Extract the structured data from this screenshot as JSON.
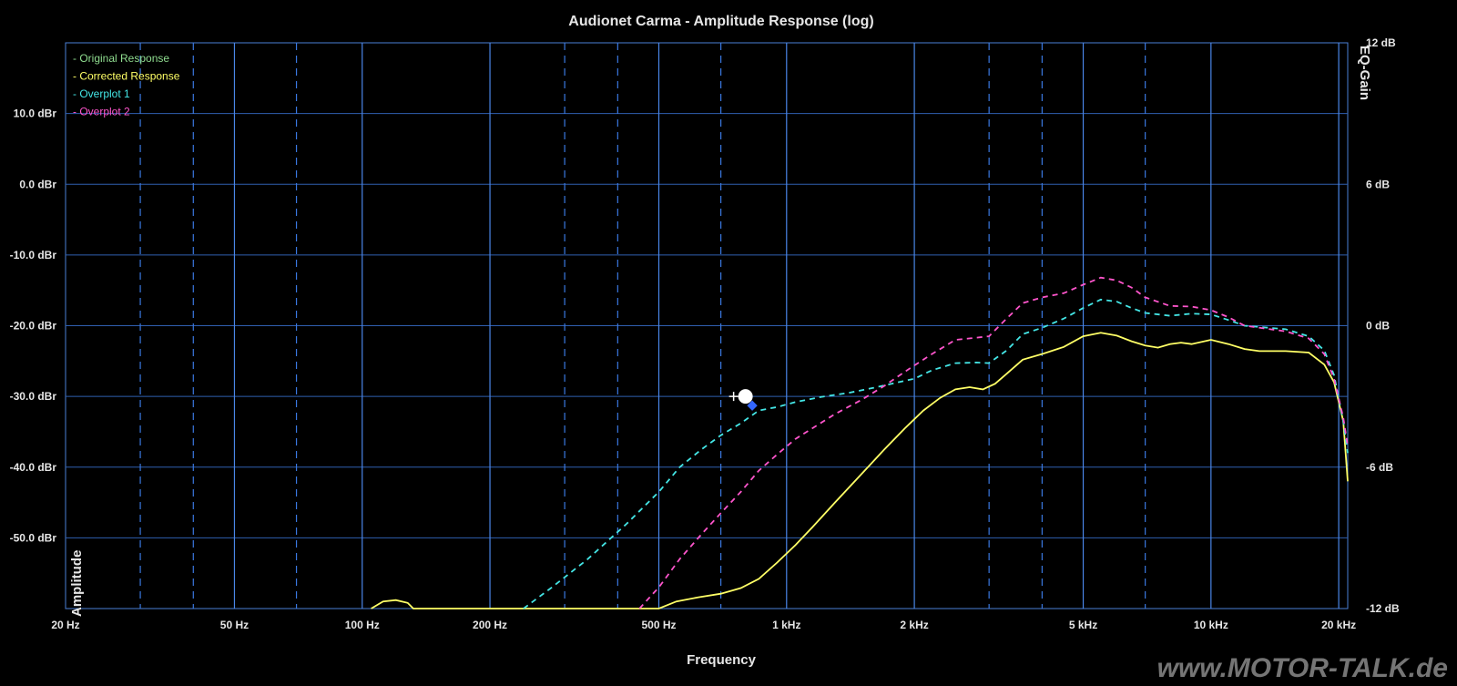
{
  "chart_data": {
    "type": "line",
    "title": "Audionet Carma - Amplitude Response (log)",
    "xlabel": "Frequency",
    "ylabel": "Amplitude",
    "y2label": "EQ-Gain",
    "x_scale": "log",
    "xlim": [
      20,
      21000
    ],
    "ylim": [
      -60,
      20
    ],
    "y2lim": [
      -12,
      12
    ],
    "grid": true,
    "legend_position": "top-left",
    "x_ticks": [
      {
        "value": 20,
        "label": "20 Hz"
      },
      {
        "value": 50,
        "label": "50 Hz"
      },
      {
        "value": 100,
        "label": "100 Hz"
      },
      {
        "value": 200,
        "label": "200 Hz"
      },
      {
        "value": 500,
        "label": "500 Hz"
      },
      {
        "value": 1000,
        "label": "1 kHz"
      },
      {
        "value": 2000,
        "label": "2 kHz"
      },
      {
        "value": 5000,
        "label": "5 kHz"
      },
      {
        "value": 10000,
        "label": "10 kHz"
      },
      {
        "value": 20000,
        "label": "20 kHz"
      }
    ],
    "x_minor_grid": [
      30,
      40,
      70,
      300,
      400,
      700,
      3000,
      4000,
      7000
    ],
    "y_ticks": [
      {
        "value": 10,
        "label": "10.0 dBr"
      },
      {
        "value": 0,
        "label": "0.0 dBr"
      },
      {
        "value": -10,
        "label": "-10.0 dBr"
      },
      {
        "value": -20,
        "label": "-20.0 dBr"
      },
      {
        "value": -30,
        "label": "-30.0 dBr"
      },
      {
        "value": -40,
        "label": "-40.0 dBr"
      },
      {
        "value": -50,
        "label": "-50.0 dBr"
      }
    ],
    "y_grid_values": [
      10,
      0,
      -10,
      -20,
      -30,
      -40,
      -50
    ],
    "y2_ticks": [
      {
        "value": 12,
        "label": "12 dB"
      },
      {
        "value": 6,
        "label": "6 dB"
      },
      {
        "value": 0,
        "label": "0 dB"
      },
      {
        "value": -6,
        "label": "-6 dB"
      },
      {
        "value": -12,
        "label": "-12 dB"
      }
    ],
    "series": [
      {
        "name": "Original Response",
        "color": "#8fdc8f",
        "dashed": false,
        "points": []
      },
      {
        "name": "Corrected Response",
        "color": "#ffff66",
        "dashed": false,
        "points": [
          [
            105,
            -60
          ],
          [
            112,
            -59
          ],
          [
            120,
            -58.8
          ],
          [
            128,
            -59.2
          ],
          [
            132,
            -60
          ],
          [
            500,
            -60
          ],
          [
            550,
            -59
          ],
          [
            620,
            -58.4
          ],
          [
            700,
            -57.9
          ],
          [
            780,
            -57.1
          ],
          [
            860,
            -55.8
          ],
          [
            950,
            -53.5
          ],
          [
            1050,
            -51
          ],
          [
            1150,
            -48.5
          ],
          [
            1300,
            -45
          ],
          [
            1500,
            -41
          ],
          [
            1700,
            -37.5
          ],
          [
            1900,
            -34.5
          ],
          [
            2100,
            -32
          ],
          [
            2300,
            -30.2
          ],
          [
            2500,
            -29
          ],
          [
            2700,
            -28.7
          ],
          [
            2900,
            -29
          ],
          [
            3100,
            -28.2
          ],
          [
            3300,
            -26.8
          ],
          [
            3600,
            -24.8
          ],
          [
            4000,
            -24
          ],
          [
            4500,
            -23
          ],
          [
            5000,
            -21.5
          ],
          [
            5500,
            -21
          ],
          [
            6000,
            -21.4
          ],
          [
            6500,
            -22.2
          ],
          [
            7000,
            -22.8
          ],
          [
            7500,
            -23.1
          ],
          [
            8000,
            -22.6
          ],
          [
            8500,
            -22.4
          ],
          [
            9000,
            -22.6
          ],
          [
            10000,
            -22
          ],
          [
            11000,
            -22.6
          ],
          [
            12000,
            -23.3
          ],
          [
            13000,
            -23.6
          ],
          [
            15000,
            -23.6
          ],
          [
            17000,
            -23.8
          ],
          [
            18500,
            -25.5
          ],
          [
            19500,
            -28
          ],
          [
            20500,
            -33.5
          ],
          [
            21000,
            -42
          ]
        ]
      },
      {
        "name": "Overplot 1",
        "color": "#44e6e6",
        "dashed": true,
        "points": [
          [
            240,
            -60
          ],
          [
            280,
            -57
          ],
          [
            340,
            -53
          ],
          [
            420,
            -48
          ],
          [
            500,
            -43.5
          ],
          [
            560,
            -40
          ],
          [
            630,
            -37.5
          ],
          [
            700,
            -35.5
          ],
          [
            780,
            -33.8
          ],
          [
            860,
            -32
          ],
          [
            950,
            -31.5
          ],
          [
            1050,
            -30.8
          ],
          [
            1200,
            -30.1
          ],
          [
            1400,
            -29.5
          ],
          [
            1600,
            -28.8
          ],
          [
            1800,
            -28.1
          ],
          [
            2000,
            -27.5
          ],
          [
            2200,
            -26.3
          ],
          [
            2500,
            -25.3
          ],
          [
            2800,
            -25.2
          ],
          [
            3000,
            -25.3
          ],
          [
            3300,
            -23.5
          ],
          [
            3600,
            -21.2
          ],
          [
            4000,
            -20.3
          ],
          [
            4500,
            -19
          ],
          [
            5000,
            -17.5
          ],
          [
            5500,
            -16.3
          ],
          [
            6000,
            -16.6
          ],
          [
            6500,
            -17.5
          ],
          [
            7000,
            -18.2
          ],
          [
            8000,
            -18.6
          ],
          [
            9000,
            -18.3
          ],
          [
            10000,
            -18.4
          ],
          [
            11000,
            -19.2
          ],
          [
            12000,
            -20
          ],
          [
            15000,
            -20.5
          ],
          [
            17000,
            -21.5
          ],
          [
            18500,
            -23.5
          ],
          [
            19500,
            -27
          ],
          [
            20500,
            -33.5
          ],
          [
            21000,
            -38
          ]
        ]
      },
      {
        "name": "Overplot 2",
        "color": "#ff55cc",
        "dashed": true,
        "points": [
          [
            450,
            -60
          ],
          [
            500,
            -57
          ],
          [
            560,
            -53
          ],
          [
            630,
            -49.5
          ],
          [
            700,
            -46.5
          ],
          [
            780,
            -43.5
          ],
          [
            860,
            -40.5
          ],
          [
            950,
            -38.2
          ],
          [
            1050,
            -36
          ],
          [
            1150,
            -34.5
          ],
          [
            1300,
            -32.5
          ],
          [
            1500,
            -30.5
          ],
          [
            1700,
            -28.5
          ],
          [
            1900,
            -26.5
          ],
          [
            2200,
            -24
          ],
          [
            2500,
            -22
          ],
          [
            2800,
            -21.7
          ],
          [
            3000,
            -21.5
          ],
          [
            3300,
            -19
          ],
          [
            3600,
            -16.8
          ],
          [
            4000,
            -16
          ],
          [
            4500,
            -15.4
          ],
          [
            5000,
            -14.2
          ],
          [
            5500,
            -13.2
          ],
          [
            6000,
            -13.6
          ],
          [
            6500,
            -14.6
          ],
          [
            7000,
            -16
          ],
          [
            8000,
            -17.2
          ],
          [
            9000,
            -17.3
          ],
          [
            10000,
            -17.8
          ],
          [
            11000,
            -18.8
          ],
          [
            12000,
            -20
          ],
          [
            15000,
            -20.8
          ],
          [
            17000,
            -21.8
          ],
          [
            18500,
            -24
          ],
          [
            19500,
            -27.5
          ],
          [
            20500,
            -33
          ],
          [
            21000,
            -37
          ]
        ]
      }
    ],
    "markers": [
      {
        "type": "cursor",
        "x": 800,
        "y": -30,
        "color": "#ffffff"
      },
      {
        "type": "cursor",
        "x": 830,
        "y": -31.3,
        "color": "#3366ff"
      }
    ]
  },
  "watermark": "www.MOTOR-TALK.de"
}
